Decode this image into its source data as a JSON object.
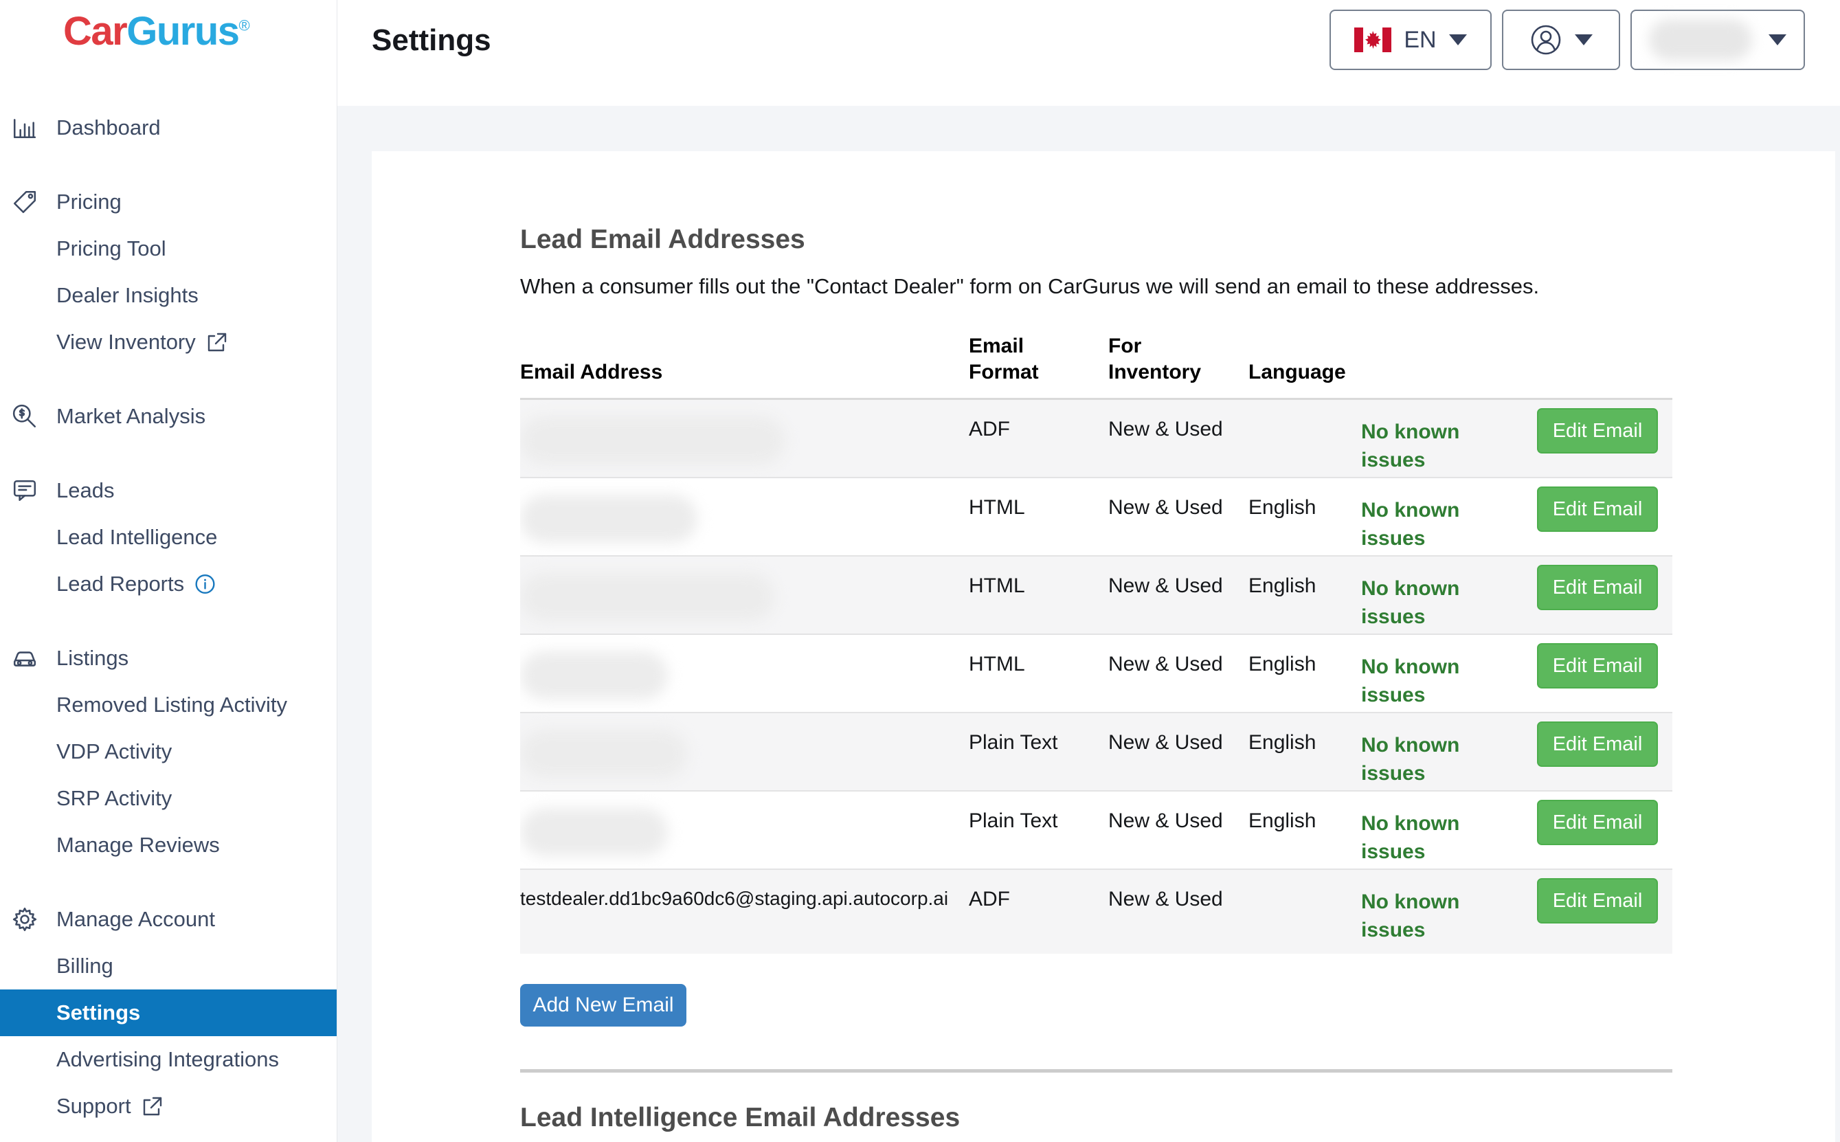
{
  "brand": {
    "name_car": "Car",
    "name_gurus": "Gurus",
    "registered_mark": "®"
  },
  "sidebar": {
    "items": [
      {
        "label": "Dashboard",
        "icon": "bar-chart-icon",
        "level": "top",
        "active": false
      },
      {
        "label": "Pricing",
        "icon": "tag-icon",
        "level": "top",
        "active": false,
        "group_start": true
      },
      {
        "label": "Pricing Tool",
        "level": "sub",
        "active": false
      },
      {
        "label": "Dealer Insights",
        "level": "sub",
        "active": false
      },
      {
        "label": "View Inventory",
        "level": "sub",
        "active": false,
        "trailing_icon": "external-link-icon"
      },
      {
        "label": "Market Analysis",
        "icon": "search-dollar-icon",
        "level": "top",
        "active": false,
        "group_start": true
      },
      {
        "label": "Leads",
        "icon": "chat-icon",
        "level": "top",
        "active": false,
        "group_start": true
      },
      {
        "label": "Lead Intelligence",
        "level": "sub",
        "active": false
      },
      {
        "label": "Lead Reports",
        "level": "sub",
        "active": false,
        "trailing_icon": "info-icon"
      },
      {
        "label": "Listings",
        "icon": "car-icon",
        "level": "top",
        "active": false,
        "group_start": true
      },
      {
        "label": "Removed Listing Activity",
        "level": "sub",
        "active": false
      },
      {
        "label": "VDP Activity",
        "level": "sub",
        "active": false
      },
      {
        "label": "SRP Activity",
        "level": "sub",
        "active": false
      },
      {
        "label": "Manage Reviews",
        "level": "sub",
        "active": false
      },
      {
        "label": "Manage Account",
        "icon": "gear-icon",
        "level": "top",
        "active": false,
        "group_start": true
      },
      {
        "label": "Billing",
        "level": "sub",
        "active": false
      },
      {
        "label": "Settings",
        "level": "sub",
        "active": true
      },
      {
        "label": "Advertising Integrations",
        "level": "sub",
        "active": false
      },
      {
        "label": "Support",
        "level": "sub",
        "active": false,
        "trailing_icon": "external-link-icon"
      }
    ]
  },
  "header": {
    "title": "Settings",
    "language_selector": {
      "flag_icon": "canada-flag-icon",
      "label": "EN"
    },
    "account_selector": {
      "icon": "user-icon"
    },
    "dealer_selector": {
      "redacted": true
    }
  },
  "lead_email_section": {
    "heading": "Lead Email Addresses",
    "description": "When a consumer fills out the \"Contact Dealer\" form on CarGurus we will send an email to these addresses.",
    "columns": [
      "Email Address",
      "Email Format",
      "For Inventory",
      "Language"
    ],
    "rows": [
      {
        "email": "",
        "redacted": true,
        "format": "ADF",
        "inventory": "New & Used",
        "language": "",
        "status": "No known issues",
        "action": "Edit Email"
      },
      {
        "email": "",
        "redacted": true,
        "format": "HTML",
        "inventory": "New & Used",
        "language": "English",
        "status": "No known issues",
        "action": "Edit Email"
      },
      {
        "email": "",
        "redacted": true,
        "format": "HTML",
        "inventory": "New & Used",
        "language": "English",
        "status": "No known issues",
        "action": "Edit Email"
      },
      {
        "email": "",
        "redacted": true,
        "format": "HTML",
        "inventory": "New & Used",
        "language": "English",
        "status": "No known issues",
        "action": "Edit Email"
      },
      {
        "email": "",
        "redacted": true,
        "format": "Plain Text",
        "inventory": "New & Used",
        "language": "English",
        "status": "No known issues",
        "action": "Edit Email"
      },
      {
        "email": "",
        "redacted": true,
        "format": "Plain Text",
        "inventory": "New & Used",
        "language": "English",
        "status": "No known issues",
        "action": "Edit Email"
      },
      {
        "email": "testdealer.dd1bc9a60dc6@staging.api.autocorp.ai",
        "redacted": false,
        "format": "ADF",
        "inventory": "New & Used",
        "language": "",
        "status": "No known issues",
        "action": "Edit Email"
      }
    ],
    "add_button": "Add New Email"
  },
  "lead_intelligence_section": {
    "heading": "Lead Intelligence Email Addresses"
  },
  "colors": {
    "nav_active_blue": "#0c76bc",
    "brand_red": "#e03c41",
    "brand_blue": "#29a9e0",
    "status_green": "#2f7d33",
    "button_green": "#5cb85c",
    "button_blue": "#3a80c2"
  }
}
